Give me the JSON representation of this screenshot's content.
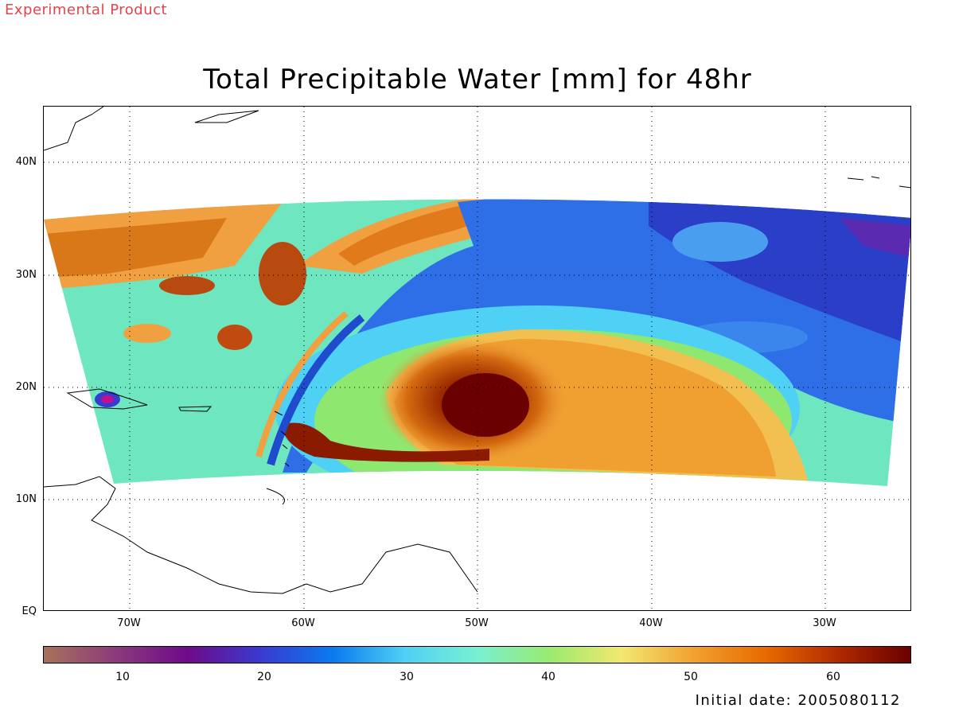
{
  "header": {
    "experimental_label": "Experimental Product",
    "title": "Total Precipitable Water [mm] for 48hr"
  },
  "map": {
    "projection": "lat-lon",
    "lon_range": [
      -75,
      -25
    ],
    "lat_range": [
      0,
      45
    ],
    "grid": "dotted",
    "lat_labels": [
      "40N",
      "30N",
      "20N",
      "10N",
      "EQ"
    ],
    "lon_labels": [
      "70W",
      "60W",
      "50W",
      "40W",
      "30W"
    ],
    "features": [
      "hurricane-vortex-near-18N-50W",
      "dry-air-band",
      "moist-tongue",
      "coastlines-caribbean-south-america"
    ]
  },
  "colorbar": {
    "min": 5,
    "max": 65,
    "labels": [
      "10",
      "20",
      "30",
      "40",
      "50",
      "60"
    ],
    "colors": [
      "#a8715a",
      "#8c3a7c",
      "#6e0a8a",
      "#3a3ad0",
      "#0a7aee",
      "#4fd0f5",
      "#78f0d2",
      "#9aea70",
      "#f2e870",
      "#f2a030",
      "#e86a00",
      "#b02a00",
      "#6a0000"
    ]
  },
  "footer": {
    "initial_date": "Initial date: 2005080112"
  }
}
